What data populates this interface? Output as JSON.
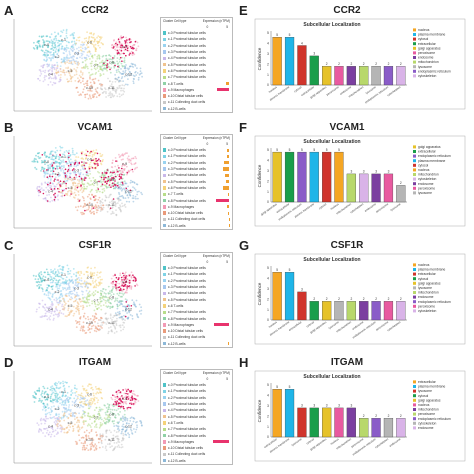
{
  "panels": [
    {
      "id": "A",
      "gene": "CCR2",
      "cluster_header": "Cluster Cell type",
      "expr_header": "Expression (nTPM)",
      "axis_min": "0",
      "axis_max": "5",
      "clusters": [
        "c-0 Proximal tubular cells",
        "c-1 Proximal tubular cells",
        "c-2 Proximal tubular cells",
        "c-3 Proximal tubular cells",
        "c-4 Proximal tubular cells",
        "c-5 Proximal tubular cells",
        "c-6 Proximal tubular cells",
        "c-7 Proximal tubular cells",
        "c-8 T-cells",
        "c-9 Macrophages",
        "c-10 Distal tubular cells",
        "c-11 Collecting duct cells",
        "c-12 B-cells"
      ],
      "expr": [
        0,
        0,
        0,
        0,
        0,
        0,
        0,
        0,
        0.6,
        2.4,
        0,
        0,
        0
      ],
      "cluster_tags": [
        "c-0",
        "c-1",
        "c-2",
        "c-3",
        "c-4",
        "c-5",
        "c-6",
        "c-7",
        "c-8",
        "c-9",
        "c-10",
        "c-11",
        "c-12"
      ]
    },
    {
      "id": "B",
      "gene": "VCAM1",
      "cluster_header": "Cluster Cell type",
      "expr_header": "Expression (nTPM)",
      "axis_min": "0",
      "axis_max": "5",
      "clusters": [
        "c-0 Proximal tubular cells",
        "c-1 Proximal tubular cells",
        "c-2 Proximal tubular cells",
        "c-3 Proximal tubular cells",
        "c-4 Proximal tubular cells",
        "c-5 Proximal tubular cells",
        "c-6 Proximal tubular cells",
        "c-7 T-cells",
        "c-8 Proximal tubular cells",
        "c-9 Macrophages",
        "c-10 Distal tubular cells",
        "c-11 Collecting duct cells",
        "c-12 B-cells"
      ],
      "expr": [
        0.3,
        0.4,
        0.9,
        1.1,
        0.8,
        0.6,
        1.2,
        0.2,
        2.6,
        0.3,
        0.2,
        0.1,
        0.1
      ],
      "cluster_tags": [
        "c-0",
        "c-1",
        "c-2",
        "c-3",
        "c-4",
        "c-5",
        "c-6",
        "c-7",
        "c-8",
        "c-9",
        "c-10",
        "c-11",
        "c-12"
      ]
    },
    {
      "id": "C",
      "gene": "CSF1R",
      "cluster_header": "Cluster Cell type",
      "expr_header": "Expression (nTPM)",
      "axis_min": "0",
      "axis_max": "5",
      "clusters": [
        "c-0 Proximal tubular cells",
        "c-1 Proximal tubular cells",
        "c-2 Proximal tubular cells",
        "c-3 Proximal tubular cells",
        "c-4 Proximal tubular cells",
        "c-5 Proximal tubular cells",
        "c-6 T-cells",
        "c-7 Proximal tubular cells",
        "c-8 Proximal tubular cells",
        "c-9 Macrophages",
        "c-10 Distal tubular cells",
        "c-11 Collecting duct cells",
        "c-12 B-cells"
      ],
      "expr": [
        0,
        0,
        0,
        0,
        0,
        0,
        0,
        0,
        0,
        2.9,
        0,
        0,
        0.2
      ],
      "cluster_tags": [
        "c-0",
        "c-1",
        "c-2",
        "c-3",
        "c-4",
        "c-5",
        "c-6",
        "c-7",
        "c-8",
        "c-9",
        "c-10",
        "c-11",
        "c-12"
      ]
    },
    {
      "id": "D",
      "gene": "ITGAM",
      "cluster_header": "Cluster Cell type",
      "expr_header": "Expression (nTPM)",
      "axis_min": "0",
      "axis_max": "5",
      "clusters": [
        "c-0 Proximal tubular cells",
        "c-1 Proximal tubular cells",
        "c-2 Proximal tubular cells",
        "c-3 Proximal tubular cells",
        "c-4 Proximal tubular cells",
        "c-5 Proximal tubular cells",
        "c-6 T-cells",
        "c-7 Proximal tubular cells",
        "c-8 Proximal tubular cells",
        "c-9 Macrophages",
        "c-10 Distal tubular cells",
        "c-11 Collecting duct cells",
        "c-12 B-cells"
      ],
      "expr": [
        0,
        0,
        0,
        0,
        0,
        0,
        0,
        0,
        0,
        3.1,
        0,
        0,
        0
      ],
      "cluster_tags": [
        "c-0",
        "c-1",
        "c-2",
        "c-3",
        "c-4",
        "c-5",
        "c-6",
        "c-7",
        "c-8",
        "c-9",
        "c-10",
        "c-11",
        "c-12"
      ]
    }
  ],
  "cluster_colors": [
    "#4fc3c7",
    "#7fd3e6",
    "#9ad3f0",
    "#a7c8ef",
    "#c9b8ea",
    "#f0c38e",
    "#f4d27a",
    "#b7dd8a",
    "#8fd1a6",
    "#f29ab5",
    "#e99a7a",
    "#c9c9c9",
    "#8cb8d8"
  ],
  "chart_data": [
    {
      "type": "bar",
      "id": "E",
      "panel_label": "E",
      "gene": "CCR2",
      "title": "Subcellular Localization",
      "ylabel": "Confidence",
      "ylim": [
        0,
        5
      ],
      "yticks": [
        "0",
        "1",
        "2",
        "3",
        "4",
        "5"
      ],
      "categories": [
        "nucleus",
        "plasma membrane",
        "cytosol",
        "extracellular",
        "golgi apparatus",
        "peroxisome",
        "endosome",
        "mitochondrion",
        "lysosome",
        "endoplasmic reticulum",
        "cytoskeleton"
      ],
      "values": [
        4.6,
        4.6,
        3.8,
        2.8,
        1.8,
        1.8,
        1.8,
        1.8,
        1.8,
        1.8,
        1.8
      ],
      "value_labels": [
        "5",
        "5",
        "4",
        "3",
        "2",
        "2",
        "2",
        "2",
        "2",
        "2",
        "2"
      ],
      "colors": [
        "#f5a623",
        "#1fb5e8",
        "#d0342c",
        "#1a9e4b",
        "#e6c229",
        "#e85aa0",
        "#7b3fa0",
        "#b8d86b",
        "#b5b5b5",
        "#8a5cc8",
        "#d9b3e8"
      ],
      "legend": [
        "nucleus",
        "plasma membrane",
        "cytosol",
        "extracellular",
        "golgi apparatus",
        "peroxisome",
        "endosome",
        "mitochondrion",
        "lysosome",
        "endoplasmic reticulum",
        "cytoskeleton"
      ]
    },
    {
      "type": "bar",
      "id": "F",
      "panel_label": "F",
      "gene": "VCAM1",
      "title": "Subcellular Localization",
      "ylabel": "Confidence",
      "ylim": [
        0,
        5
      ],
      "yticks": [
        "0",
        "1",
        "2",
        "3",
        "4",
        "5"
      ],
      "categories": [
        "golgi apparatus",
        "extracellular",
        "endoplasmic reticulum",
        "plasma membrane",
        "cytosol",
        "nucleus",
        "mitochondrion",
        "cytoskeleton",
        "endosome",
        "peroxisome",
        "lysosome"
      ],
      "values": [
        4.8,
        4.8,
        4.8,
        4.8,
        4.8,
        4.8,
        2.7,
        2.7,
        2.7,
        2.7,
        1.6
      ],
      "value_labels": [
        "5",
        "5",
        "5",
        "5",
        "5",
        "5",
        "3",
        "3",
        "3",
        "3",
        "2"
      ],
      "colors": [
        "#e6c229",
        "#1a9e4b",
        "#8a5cc8",
        "#1fb5e8",
        "#d0342c",
        "#f5a623",
        "#b8d86b",
        "#d9b3e8",
        "#7b3fa0",
        "#e85aa0",
        "#b5b5b5"
      ],
      "legend": [
        "golgi apparatus",
        "extracellular",
        "endoplasmic reticulum",
        "plasma membrane",
        "cytosol",
        "nucleus",
        "mitochondrion",
        "cytoskeleton",
        "endosome",
        "peroxisome",
        "lysosome"
      ]
    },
    {
      "type": "bar",
      "id": "G",
      "panel_label": "G",
      "gene": "CSF1R",
      "title": "Subcellular Localization",
      "ylabel": "Confidence",
      "ylim": [
        0,
        5
      ],
      "yticks": [
        "0",
        "1",
        "2",
        "3",
        "4",
        "5"
      ],
      "categories": [
        "nucleus",
        "plasma membrane",
        "extracellular",
        "cytosol",
        "golgi apparatus",
        "lysosome",
        "mitochondrion",
        "endosome",
        "endoplasmic reticulum",
        "peroxisome",
        "cytoskeleton"
      ],
      "values": [
        4.6,
        4.6,
        2.7,
        1.8,
        1.8,
        1.8,
        1.8,
        1.8,
        1.8,
        1.8,
        1.8
      ],
      "value_labels": [
        "5",
        "5",
        "3",
        "2",
        "2",
        "2",
        "2",
        "2",
        "2",
        "2",
        "2"
      ],
      "colors": [
        "#f5a623",
        "#1fb5e8",
        "#d0342c",
        "#1a9e4b",
        "#e6c229",
        "#b5b5b5",
        "#b8d86b",
        "#7b3fa0",
        "#8a5cc8",
        "#e85aa0",
        "#d9b3e8"
      ],
      "legend": [
        "nucleus",
        "plasma membrane",
        "extracellular",
        "cytosol",
        "golgi apparatus",
        "lysosome",
        "mitochondrion",
        "endosome",
        "endoplasmic reticulum",
        "peroxisome",
        "cytoskeleton"
      ]
    },
    {
      "type": "bar",
      "id": "H",
      "panel_label": "H",
      "gene": "ITGAM",
      "title": "Subcellular Localization",
      "ylabel": "Confidence",
      "ylim": [
        0,
        5
      ],
      "yticks": [
        "0",
        "1",
        "2",
        "3",
        "4",
        "5"
      ],
      "categories": [
        "extracellular",
        "plasma membrane",
        "lysosome",
        "cytosol",
        "golgi apparatus",
        "nucleus",
        "mitochondrion",
        "peroxisome",
        "endoplasmic reticulum",
        "cytoskeleton",
        "endosome"
      ],
      "values": [
        4.6,
        4.6,
        2.8,
        2.8,
        2.8,
        2.8,
        2.8,
        1.8,
        1.8,
        1.8,
        1.8
      ],
      "value_labels": [
        "5",
        "5",
        "3",
        "3",
        "3",
        "3",
        "3",
        "2",
        "2",
        "2",
        "2"
      ],
      "colors": [
        "#f5a623",
        "#1fb5e8",
        "#d0342c",
        "#1a9e4b",
        "#e6c229",
        "#e85aa0",
        "#7b3fa0",
        "#b8d86b",
        "#8a5cc8",
        "#b5b5b5",
        "#d9b3e8"
      ],
      "legend": [
        "extracellular",
        "plasma membrane",
        "lysosome",
        "cytosol",
        "golgi apparatus",
        "nucleus",
        "mitochondrion",
        "peroxisome",
        "endoplasmic reticulum",
        "cytoskeleton",
        "endosome"
      ]
    }
  ]
}
